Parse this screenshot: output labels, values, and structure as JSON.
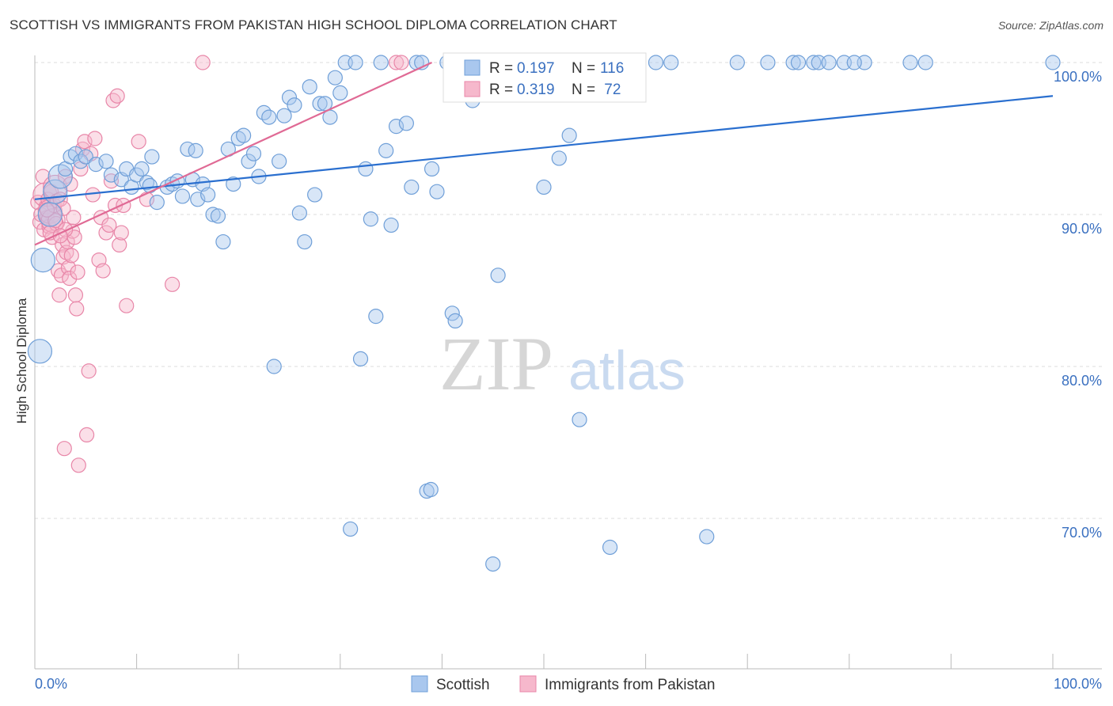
{
  "chart_data": {
    "type": "scatter",
    "title": "SCOTTISH VS IMMIGRANTS FROM PAKISTAN HIGH SCHOOL DIPLOMA CORRELATION CHART",
    "source": "Source: ZipAtlas.com",
    "xlabel": "",
    "ylabel": "High School Diploma",
    "xlim": [
      0,
      100
    ],
    "ylim": [
      59,
      101
    ],
    "x_tick_labels": [
      "0.0%",
      "100.0%"
    ],
    "y_ticks": [
      70,
      80,
      90,
      100
    ],
    "y_tick_labels": [
      "70.0%",
      "80.0%",
      "90.0%",
      "100.0%"
    ],
    "grid": true,
    "watermark": {
      "part1": "ZIP",
      "part2": "atlas"
    },
    "legend_box": {
      "rows": [
        {
          "r_label": "R = ",
          "r_value": "0.197",
          "n_label": "N = ",
          "n_value": "116"
        },
        {
          "r_label": "R = ",
          "r_value": "0.319",
          "n_label": "N = ",
          "n_value": " 72"
        }
      ]
    },
    "bottom_legend": [
      "Scottish",
      "Immigrants from Pakistan"
    ],
    "colors": {
      "scottish_fill": "#a9c7ee",
      "scottish_stroke": "#6f9fd8",
      "scottish_line": "#2a6fcf",
      "pakistan_fill": "#f6b8cc",
      "pakistan_stroke": "#e886a8",
      "pakistan_line": "#e06a95",
      "axis_text": "#3a70c0",
      "grid": "#dddddd"
    },
    "series": [
      {
        "name": "Scottish",
        "trend": [
          [
            0,
            91.0
          ],
          [
            100,
            97.8
          ]
        ],
        "points": [
          [
            0.5,
            81.0
          ],
          [
            0.8,
            87.0
          ],
          [
            1.5,
            90.0
          ],
          [
            2.0,
            91.5
          ],
          [
            2.5,
            92.5
          ],
          [
            3.0,
            93.0
          ],
          [
            3.5,
            93.8
          ],
          [
            4.0,
            94.0
          ],
          [
            4.5,
            93.5
          ],
          [
            5.0,
            93.8
          ],
          [
            6.0,
            93.3
          ],
          [
            7.0,
            93.5
          ],
          [
            7.5,
            92.6
          ],
          [
            8.5,
            92.3
          ],
          [
            9.0,
            93.0
          ],
          [
            9.5,
            91.8
          ],
          [
            10.0,
            92.6
          ],
          [
            10.5,
            93.0
          ],
          [
            11.0,
            92.1
          ],
          [
            11.5,
            93.8
          ],
          [
            11.3,
            91.9
          ],
          [
            12.0,
            90.8
          ],
          [
            13.0,
            91.8
          ],
          [
            13.5,
            92.0
          ],
          [
            14.0,
            92.2
          ],
          [
            14.5,
            91.2
          ],
          [
            15.0,
            94.3
          ],
          [
            15.5,
            92.3
          ],
          [
            15.8,
            94.2
          ],
          [
            16.0,
            91.0
          ],
          [
            16.5,
            92.0
          ],
          [
            17.0,
            91.3
          ],
          [
            17.5,
            90.0
          ],
          [
            18.0,
            89.9
          ],
          [
            18.5,
            88.2
          ],
          [
            19.0,
            94.3
          ],
          [
            19.5,
            92.0
          ],
          [
            20.0,
            95.0
          ],
          [
            20.5,
            95.2
          ],
          [
            21.0,
            93.5
          ],
          [
            21.5,
            94.0
          ],
          [
            22.0,
            92.5
          ],
          [
            22.5,
            96.7
          ],
          [
            23.0,
            96.4
          ],
          [
            23.5,
            80.0
          ],
          [
            24.0,
            93.5
          ],
          [
            24.5,
            96.5
          ],
          [
            25.0,
            97.7
          ],
          [
            25.5,
            97.2
          ],
          [
            26.0,
            90.1
          ],
          [
            26.5,
            88.2
          ],
          [
            27.0,
            98.4
          ],
          [
            27.5,
            91.3
          ],
          [
            28.0,
            97.3
          ],
          [
            28.5,
            97.3
          ],
          [
            29.0,
            96.4
          ],
          [
            29.5,
            99.0
          ],
          [
            30.0,
            98.0
          ],
          [
            30.5,
            100.0
          ],
          [
            31.0,
            69.3
          ],
          [
            31.5,
            100.0
          ],
          [
            32.0,
            80.5
          ],
          [
            32.5,
            93.0
          ],
          [
            33.0,
            89.7
          ],
          [
            33.5,
            83.3
          ],
          [
            34.0,
            100.0
          ],
          [
            34.5,
            94.2
          ],
          [
            35.0,
            89.3
          ],
          [
            35.5,
            95.8
          ],
          [
            36.5,
            96.0
          ],
          [
            37.0,
            91.8
          ],
          [
            37.5,
            100.0
          ],
          [
            38.0,
            100.0
          ],
          [
            38.5,
            71.8
          ],
          [
            38.9,
            71.9
          ],
          [
            39.0,
            93.0
          ],
          [
            39.5,
            91.5
          ],
          [
            40.5,
            100.0
          ],
          [
            41.0,
            83.5
          ],
          [
            41.3,
            83.0
          ],
          [
            42.0,
            100.0
          ],
          [
            43.0,
            97.5
          ],
          [
            43.5,
            100.0
          ],
          [
            44.0,
            100.0
          ],
          [
            45.0,
            67.0
          ],
          [
            45.5,
            86.0
          ],
          [
            46.0,
            100.0
          ],
          [
            47.5,
            100.0
          ],
          [
            48.5,
            100.0
          ],
          [
            49.5,
            98.0
          ],
          [
            50.0,
            91.8
          ],
          [
            50.5,
            100.0
          ],
          [
            51.5,
            93.7
          ],
          [
            52.0,
            100.0
          ],
          [
            52.5,
            95.2
          ],
          [
            53.5,
            76.5
          ],
          [
            54.0,
            100.0
          ],
          [
            55.0,
            100.0
          ],
          [
            56.5,
            68.1
          ],
          [
            58.5,
            100.0
          ],
          [
            61.0,
            100.0
          ],
          [
            62.5,
            100.0
          ],
          [
            66.0,
            68.8
          ],
          [
            69.0,
            100.0
          ],
          [
            72.0,
            100.0
          ],
          [
            74.5,
            100.0
          ],
          [
            75.0,
            100.0
          ],
          [
            76.5,
            100.0
          ],
          [
            77.0,
            100.0
          ],
          [
            78.0,
            100.0
          ],
          [
            79.5,
            100.0
          ],
          [
            81.5,
            100.0
          ],
          [
            86.0,
            100.0
          ],
          [
            87.5,
            100.0
          ],
          [
            100.0,
            100.0
          ],
          [
            80.5,
            100.0
          ]
        ],
        "big_points": [
          [
            0.5,
            81.0
          ],
          [
            0.8,
            87.0
          ],
          [
            1.5,
            90.0
          ],
          [
            2.0,
            91.5
          ],
          [
            2.5,
            92.5
          ]
        ]
      },
      {
        "name": "Immigrants from Pakistan",
        "trend": [
          [
            0,
            88.0
          ],
          [
            39,
            100.0
          ]
        ],
        "points": [
          [
            0.3,
            90.8
          ],
          [
            0.5,
            89.5
          ],
          [
            0.6,
            90.0
          ],
          [
            0.8,
            92.5
          ],
          [
            0.9,
            89.0
          ],
          [
            1.0,
            91.3
          ],
          [
            1.1,
            90.5
          ],
          [
            1.2,
            89.8
          ],
          [
            1.3,
            91.0
          ],
          [
            1.4,
            89.2
          ],
          [
            1.5,
            90.2
          ],
          [
            1.6,
            91.5
          ],
          [
            1.7,
            88.5
          ],
          [
            1.8,
            89.6
          ],
          [
            1.9,
            90.6
          ],
          [
            2.0,
            91.8
          ],
          [
            2.1,
            89.4
          ],
          [
            2.2,
            90.9
          ],
          [
            2.3,
            86.3
          ],
          [
            2.4,
            84.7
          ],
          [
            2.5,
            91.0
          ],
          [
            2.6,
            86.0
          ],
          [
            2.7,
            88.0
          ],
          [
            2.8,
            87.2
          ],
          [
            2.9,
            74.6
          ],
          [
            3.0,
            92.5
          ],
          [
            3.1,
            87.5
          ],
          [
            3.2,
            88.2
          ],
          [
            3.3,
            86.5
          ],
          [
            3.4,
            85.8
          ],
          [
            3.5,
            92.0
          ],
          [
            3.6,
            87.3
          ],
          [
            3.7,
            88.9
          ],
          [
            3.8,
            89.8
          ],
          [
            3.9,
            88.5
          ],
          [
            4.0,
            84.7
          ],
          [
            4.1,
            83.8
          ],
          [
            4.2,
            86.2
          ],
          [
            4.3,
            73.5
          ],
          [
            4.5,
            93.0
          ],
          [
            4.7,
            94.3
          ],
          [
            4.9,
            94.8
          ],
          [
            5.1,
            75.5
          ],
          [
            5.3,
            79.7
          ],
          [
            5.5,
            94.0
          ],
          [
            5.7,
            91.3
          ],
          [
            5.9,
            95.0
          ],
          [
            6.3,
            87.0
          ],
          [
            6.5,
            89.8
          ],
          [
            6.7,
            86.3
          ],
          [
            7.0,
            88.8
          ],
          [
            7.3,
            89.3
          ],
          [
            7.5,
            92.2
          ],
          [
            7.7,
            97.5
          ],
          [
            7.9,
            90.6
          ],
          [
            8.1,
            97.8
          ],
          [
            8.3,
            88.0
          ],
          [
            8.5,
            88.8
          ],
          [
            8.7,
            90.6
          ],
          [
            9.0,
            84.0
          ],
          [
            10.2,
            94.8
          ],
          [
            11.0,
            91.0
          ],
          [
            13.5,
            85.4
          ],
          [
            16.5,
            100.0
          ],
          [
            35.5,
            100.0
          ],
          [
            36.0,
            100.0
          ],
          [
            2.0,
            89.6
          ],
          [
            1.5,
            88.8
          ],
          [
            3.0,
            89.0
          ],
          [
            2.5,
            88.6
          ],
          [
            1.2,
            90.3
          ],
          [
            2.8,
            90.4
          ]
        ],
        "big_points": [
          [
            1.0,
            91.3
          ],
          [
            1.5,
            90.2
          ],
          [
            2.0,
            91.8
          ],
          [
            1.8,
            89.6
          ]
        ]
      }
    ]
  }
}
